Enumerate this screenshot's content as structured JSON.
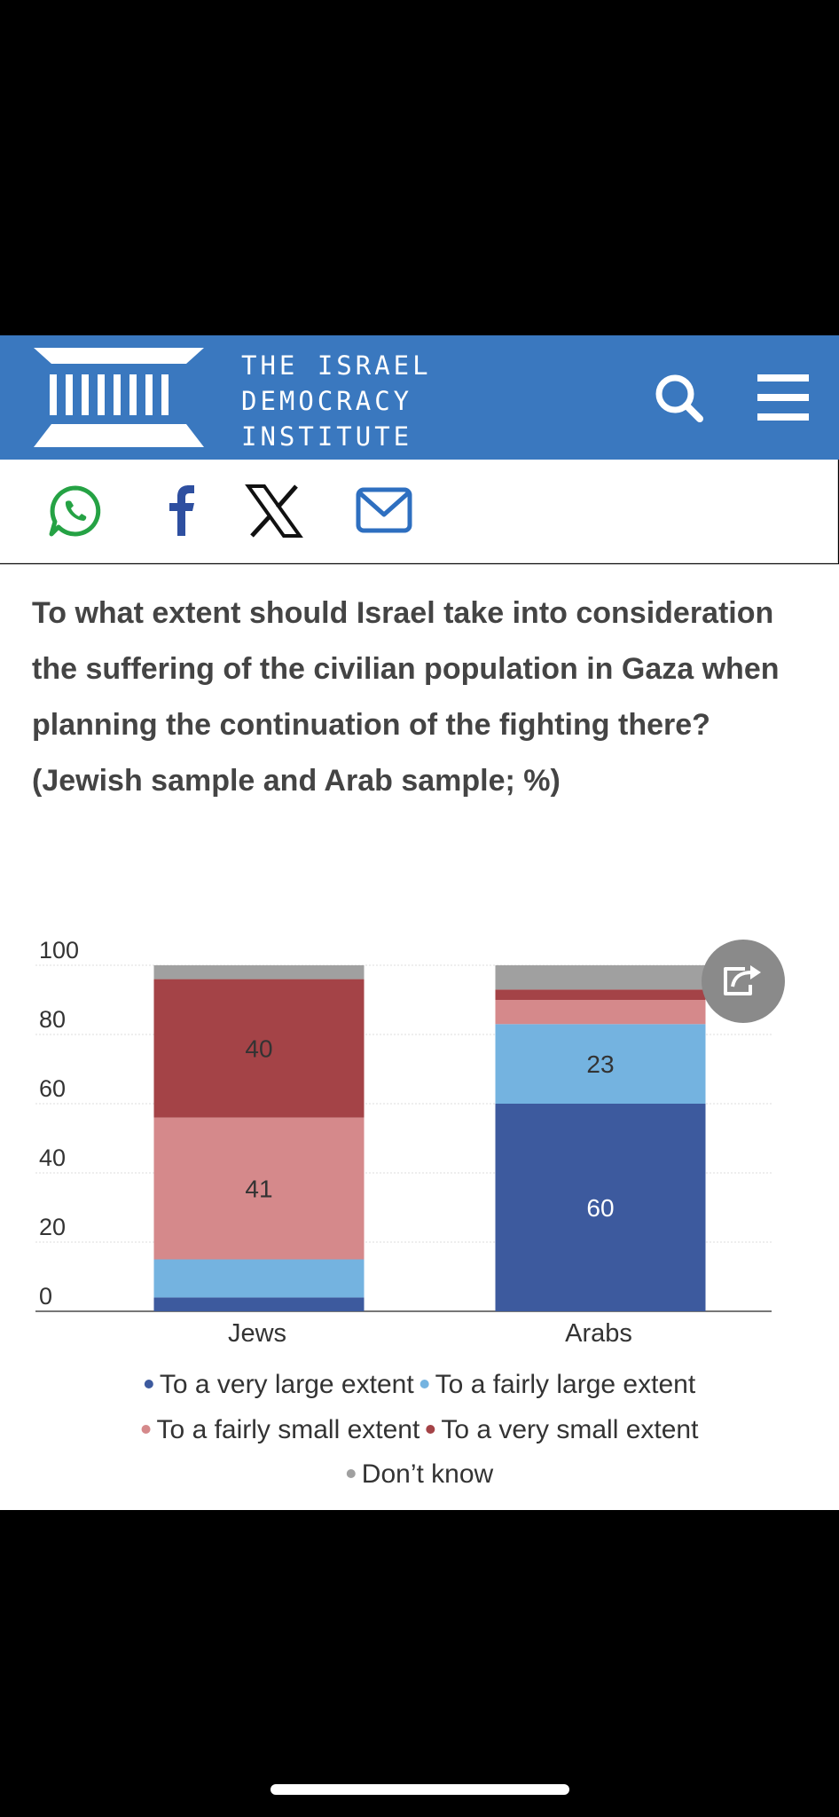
{
  "header": {
    "logo_lines": [
      "THE ISRAEL",
      "DEMOCRACY",
      "INSTITUTE"
    ],
    "brand_color": "#3a78bf"
  },
  "share": {
    "icons": [
      "whatsapp-icon",
      "facebook-icon",
      "x-icon",
      "mail-icon"
    ]
  },
  "question": "To what extent should Israel take into consideration the suffering of the civilian population in Gaza when planning the continuation of the fighting there? (Jewish sample and Arab sample; %)",
  "chart_data": {
    "type": "bar",
    "stacked": true,
    "categories": [
      "Jews",
      "Arabs"
    ],
    "ylim": [
      0,
      100
    ],
    "yticks": [
      0,
      20,
      40,
      60,
      80,
      100
    ],
    "grid": true,
    "legend_position": "bottom",
    "series": [
      {
        "name": "To a very large extent",
        "color": "#3d5a9e",
        "values": [
          4,
          60
        ],
        "labels": [
          "",
          "60"
        ]
      },
      {
        "name": "To a fairly large extent",
        "color": "#74b3e0",
        "values": [
          11,
          23
        ],
        "labels": [
          "",
          "23"
        ]
      },
      {
        "name": "To a fairly small extent",
        "color": "#d5898b",
        "values": [
          41,
          7
        ],
        "labels": [
          "41",
          ""
        ]
      },
      {
        "name": "To a very small extent",
        "color": "#a44347",
        "values": [
          40,
          3
        ],
        "labels": [
          "40",
          ""
        ]
      },
      {
        "name": "Don’t know",
        "color": "#a0a0a0",
        "values": [
          4,
          7
        ],
        "labels": [
          "",
          ""
        ]
      }
    ]
  }
}
